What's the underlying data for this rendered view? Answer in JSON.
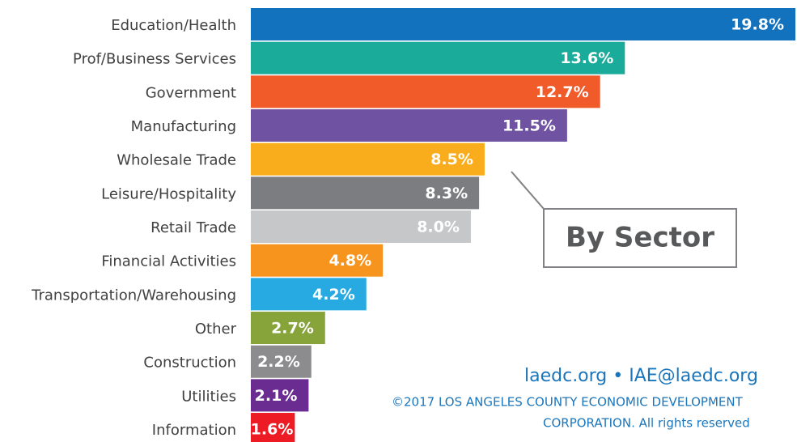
{
  "chart_data": {
    "type": "hbar",
    "categories": [
      "Education/Health",
      "Prof/Business Services",
      "Government",
      "Manufacturing",
      "Wholesale Trade",
      "Leisure/Hospitality",
      "Retail Trade",
      "Financial Activities",
      "Transportation/Warehousing",
      "Other",
      "Construction",
      "Utilities",
      "Information"
    ],
    "values": [
      19.8,
      13.6,
      12.7,
      11.5,
      8.5,
      8.3,
      8.0,
      4.8,
      4.2,
      2.7,
      2.2,
      2.1,
      1.6
    ],
    "value_labels": [
      "19.8%",
      "13.6%",
      "12.7%",
      "11.5%",
      "8.5%",
      "8.3%",
      "8.0%",
      "4.8%",
      "4.2%",
      "2.7%",
      "2.2%",
      "2.1%",
      "1.6%"
    ],
    "colors": [
      "#1272be",
      "#1aab9b",
      "#f15a29",
      "#6f53a2",
      "#f9ad1d",
      "#7c7d80",
      "#c6c7c9",
      "#f7941d",
      "#27aae1",
      "#86a43a",
      "#8c8c8f",
      "#6a2c91",
      "#ed1c24"
    ],
    "xlim": [
      0,
      19.8
    ],
    "annotations": [
      "By Sector",
      "laedc.org • IAE@laedc.org",
      "©2017 LOS ANGELES COUNTY ECONOMIC DEVELOPMENT",
      "CORPORATION.  All rights reserved"
    ]
  }
}
